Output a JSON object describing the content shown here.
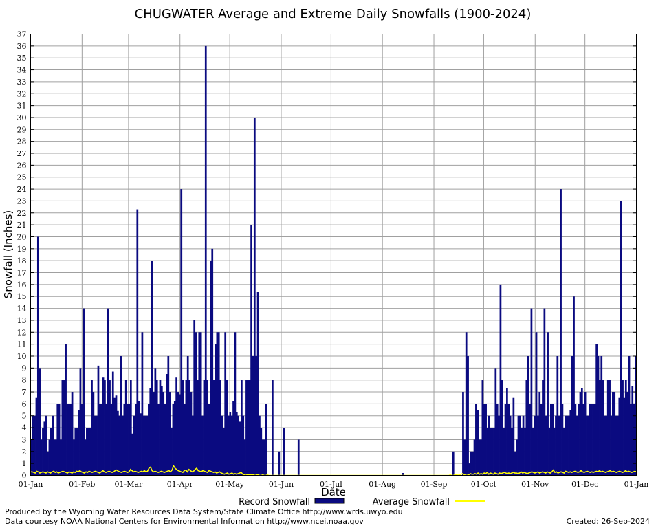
{
  "chart_data": {
    "type": "bar",
    "title": "CHUGWATER Average and Extreme Daily Snowfalls (1900-2024)",
    "xlabel": "Date",
    "ylabel": "Snowfall (Inches)",
    "ylim": [
      0,
      37
    ],
    "x_ticks": [
      "01-Jan",
      "01-Feb",
      "01-Mar",
      "01-Apr",
      "01-May",
      "01-Jun",
      "01-Jul",
      "01-Aug",
      "01-Sep",
      "01-Oct",
      "01-Nov",
      "01-Dec",
      "01-Jan"
    ],
    "y_ticks": [
      0,
      1,
      2,
      3,
      4,
      5,
      6,
      7,
      8,
      9,
      10,
      11,
      12,
      13,
      14,
      15,
      16,
      17,
      18,
      19,
      20,
      21,
      22,
      23,
      24,
      25,
      26,
      27,
      28,
      29,
      30,
      31,
      32,
      33,
      34,
      35,
      36,
      37
    ],
    "grid": true,
    "legend_position": "bottom",
    "series": [
      {
        "name": "Record Snowfall",
        "kind": "bar",
        "color": "#0a0a80",
        "values": [
          3,
          5,
          5,
          6.5,
          20,
          9,
          3,
          4,
          4.5,
          5,
          2,
          3,
          4,
          5,
          3,
          3,
          6,
          6,
          3,
          8,
          8,
          11,
          6,
          6,
          6,
          7,
          3,
          4,
          4,
          5.5,
          9,
          6,
          14,
          3,
          4,
          4,
          4,
          8,
          7,
          5,
          5,
          9.2,
          6,
          6,
          8.2,
          8,
          6,
          14,
          8,
          6,
          8.7,
          6.5,
          6.7,
          5.4,
          5,
          10,
          5,
          6,
          8,
          6,
          6,
          8,
          3.5,
          5,
          6,
          22.3,
          6.2,
          5.2,
          12,
          5,
          5,
          5,
          6,
          7.3,
          18,
          7,
          9,
          8,
          6,
          8,
          7.5,
          7,
          6,
          8.5,
          10,
          7,
          4,
          6,
          6.2,
          8.2,
          7,
          6.8,
          24,
          8,
          6,
          8,
          10,
          8,
          7,
          5,
          13,
          12,
          8,
          12,
          12,
          5,
          8,
          36,
          8,
          6,
          18,
          19,
          8,
          11,
          12,
          12,
          8,
          5,
          4,
          12,
          8,
          5,
          5.3,
          5,
          6.2,
          12,
          5.3,
          5,
          4.5,
          8,
          5,
          3,
          8,
          8,
          8,
          21,
          10,
          30,
          10,
          15.4,
          5,
          4,
          3,
          3,
          6,
          0,
          0,
          0,
          8,
          0,
          0,
          0,
          2,
          0,
          0,
          4,
          0,
          0,
          0,
          0,
          0,
          0,
          0,
          0,
          3,
          0,
          0,
          0,
          0,
          0,
          0,
          0,
          0,
          0,
          0,
          0,
          0,
          0,
          0,
          0,
          0,
          0,
          0,
          0,
          0,
          0,
          0,
          0,
          0,
          0,
          0,
          0,
          0,
          0,
          0,
          0,
          0,
          0,
          0,
          0,
          0,
          0,
          0,
          0,
          0,
          0,
          0,
          0,
          0,
          0,
          0,
          0,
          0,
          0,
          0,
          0,
          0,
          0,
          0,
          0,
          0,
          0,
          0,
          0,
          0,
          0,
          0,
          0,
          0.2,
          0,
          0,
          0,
          0,
          0,
          0,
          0,
          0,
          0,
          0,
          0,
          0,
          0,
          0,
          0,
          0,
          0,
          0,
          0,
          0,
          0,
          0,
          0,
          0,
          0,
          0,
          0,
          0,
          0,
          0,
          2,
          0,
          0,
          0,
          0,
          0,
          7,
          3,
          12,
          10,
          1,
          2,
          2,
          3,
          6,
          5.5,
          3,
          3,
          8,
          6,
          6,
          4,
          5,
          4,
          4,
          4,
          9,
          6,
          5,
          16,
          8,
          4,
          6,
          7.3,
          6,
          5,
          4,
          6.5,
          2,
          3,
          5,
          5,
          4,
          5,
          4,
          8,
          10,
          6,
          14,
          4,
          5,
          12,
          5,
          7,
          6,
          8,
          14,
          5,
          12,
          4,
          6,
          6,
          4,
          5,
          10,
          5,
          24,
          6,
          4,
          5,
          5,
          5,
          5.5,
          10,
          15,
          6,
          5,
          6,
          7,
          7.3,
          6,
          7,
          5,
          5,
          6,
          6,
          6,
          6,
          11,
          10,
          8,
          10,
          8,
          5,
          5,
          8,
          8,
          5,
          7,
          7,
          5,
          5,
          6.5,
          23,
          8,
          6.5,
          8,
          7,
          10,
          6,
          7.5,
          6,
          10
        ]
      },
      {
        "name": "Average Snowfall",
        "kind": "line",
        "color": "#ffff00",
        "values": [
          0.3,
          0.3,
          0.25,
          0.2,
          0.35,
          0.3,
          0.2,
          0.25,
          0.3,
          0.25,
          0.2,
          0.3,
          0.25,
          0.2,
          0.3,
          0.35,
          0.25,
          0.3,
          0.2,
          0.25,
          0.3,
          0.35,
          0.3,
          0.25,
          0.2,
          0.3,
          0.25,
          0.2,
          0.3,
          0.25,
          0.35,
          0.3,
          0.4,
          0.3,
          0.25,
          0.2,
          0.3,
          0.25,
          0.35,
          0.3,
          0.25,
          0.3,
          0.35,
          0.3,
          0.25,
          0.2,
          0.3,
          0.4,
          0.3,
          0.25,
          0.3,
          0.35,
          0.3,
          0.25,
          0.3,
          0.4,
          0.45,
          0.35,
          0.3,
          0.25,
          0.3,
          0.35,
          0.3,
          0.25,
          0.3,
          0.5,
          0.4,
          0.3,
          0.35,
          0.3,
          0.25,
          0.3,
          0.35,
          0.3,
          0.4,
          0.3,
          0.35,
          0.6,
          0.7,
          0.4,
          0.3,
          0.35,
          0.3,
          0.25,
          0.3,
          0.35,
          0.3,
          0.25,
          0.3,
          0.35,
          0.4,
          0.3,
          0.45,
          0.8,
          0.6,
          0.5,
          0.4,
          0.35,
          0.3,
          0.25,
          0.4,
          0.45,
          0.3,
          0.5,
          0.4,
          0.3,
          0.35,
          0.5,
          0.6,
          0.4,
          0.35,
          0.3,
          0.4,
          0.35,
          0.3,
          0.25,
          0.4,
          0.35,
          0.3,
          0.25,
          0.3,
          0.2,
          0.25,
          0.3,
          0.2,
          0.15,
          0.1,
          0.15,
          0.2,
          0.1,
          0.15,
          0.2,
          0.1,
          0.15,
          0.1,
          0.15,
          0.2,
          0.25,
          0.1,
          0.05,
          0.1,
          0.05,
          0.05,
          0.05,
          0.05,
          0.05,
          0,
          0.05,
          0.05,
          0,
          0,
          0.05,
          0,
          0,
          0.05,
          0,
          0,
          0,
          0,
          0,
          0,
          0,
          0,
          0,
          0,
          0,
          0,
          0,
          0,
          0,
          0,
          0,
          0,
          0,
          0,
          0,
          0,
          0,
          0,
          0,
          0,
          0,
          0,
          0,
          0,
          0,
          0,
          0,
          0,
          0,
          0,
          0,
          0,
          0,
          0,
          0,
          0,
          0,
          0,
          0,
          0,
          0,
          0,
          0,
          0,
          0,
          0,
          0,
          0,
          0,
          0,
          0,
          0,
          0,
          0,
          0,
          0,
          0,
          0,
          0,
          0,
          0,
          0,
          0,
          0,
          0,
          0,
          0,
          0,
          0,
          0,
          0,
          0,
          0,
          0,
          0,
          0,
          0,
          0,
          0,
          0,
          0,
          0,
          0,
          0,
          0,
          0,
          0,
          0,
          0,
          0,
          0,
          0,
          0,
          0,
          0,
          0,
          0,
          0,
          0,
          0,
          0,
          0,
          0,
          0,
          0,
          0,
          0,
          0,
          0,
          0,
          0,
          0,
          0.05,
          0,
          0,
          0.05,
          0.05,
          0.1,
          0.05,
          0.1,
          0.15,
          0.05,
          0.1,
          0.1,
          0.05,
          0.15,
          0.1,
          0.1,
          0.15,
          0.1,
          0.2,
          0.1,
          0.15,
          0.1,
          0.2,
          0.15,
          0.25,
          0.1,
          0.2,
          0.15,
          0.1,
          0.2,
          0.15,
          0.1,
          0.2,
          0.15,
          0.2,
          0.25,
          0.2,
          0.15,
          0.2,
          0.15,
          0.2,
          0.25,
          0.2,
          0.2,
          0.15,
          0.2,
          0.3,
          0.2,
          0.25,
          0.2,
          0.15,
          0.2,
          0.25,
          0.3,
          0.25,
          0.2,
          0.25,
          0.3,
          0.2,
          0.25,
          0.3,
          0.25,
          0.2,
          0.3,
          0.25,
          0.2,
          0.3,
          0.45,
          0.25,
          0.3,
          0.2,
          0.25,
          0.3,
          0.25,
          0.2,
          0.35,
          0.3,
          0.25,
          0.3,
          0.25,
          0.3,
          0.35,
          0.3,
          0.25,
          0.3,
          0.4,
          0.3,
          0.25,
          0.3,
          0.35,
          0.3,
          0.25,
          0.3,
          0.25,
          0.3,
          0.35,
          0.3,
          0.4,
          0.3,
          0.35,
          0.3,
          0.25,
          0.3,
          0.35,
          0.4,
          0.3,
          0.35,
          0.3,
          0.25,
          0.3,
          0.35,
          0.3,
          0.25,
          0.3,
          0.4,
          0.3,
          0.35,
          0.3,
          0.25,
          0.3,
          0.35,
          0.3
        ]
      }
    ]
  },
  "footer": {
    "line1": "Produced by the Wyoming Water Resources Data System/State Climate Office http://www.wrds.uwyo.edu",
    "line2": "Data courtesy NOAA National Centers for Environmental Information http://www.ncei.noaa.gov",
    "created": "Created:  26-Sep-2024"
  }
}
